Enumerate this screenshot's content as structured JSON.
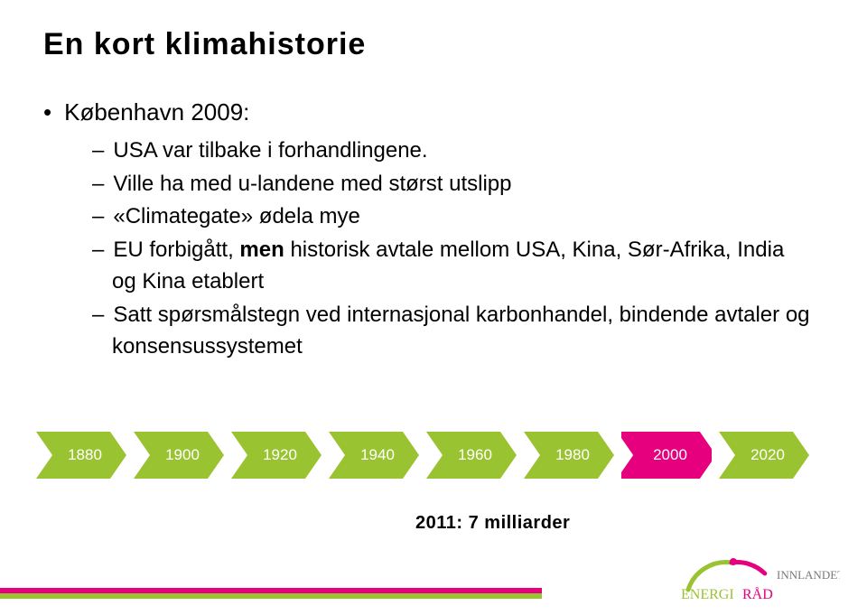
{
  "title": "En kort klimahistorie",
  "bullet_main": "København 2009:",
  "sub_bullets": [
    {
      "pre": "USA var tilbake i forhandlingene.",
      "bold": "",
      "post": ""
    },
    {
      "pre": "Ville ha med u-landene med størst utslipp",
      "bold": "",
      "post": ""
    },
    {
      "pre": "«Climategate» ødela mye",
      "bold": "",
      "post": ""
    },
    {
      "pre": "EU forbigått, ",
      "bold": "men",
      "post": " historisk avtale mellom USA, Kina, Sør-Afrika, India og Kina etablert"
    },
    {
      "pre": "Satt spørsmålstegn ved internasjonal karbonhandel, bindende avtaler og konsensussystemet",
      "bold": "",
      "post": ""
    }
  ],
  "timeline": {
    "items": [
      {
        "label": "1880",
        "fill": "#9ac331",
        "highlight": false
      },
      {
        "label": "1900",
        "fill": "#9ac331",
        "highlight": false
      },
      {
        "label": "1920",
        "fill": "#9ac331",
        "highlight": false
      },
      {
        "label": "1940",
        "fill": "#9ac331",
        "highlight": false
      },
      {
        "label": "1960",
        "fill": "#9ac331",
        "highlight": false
      },
      {
        "label": "1980",
        "fill": "#9ac331",
        "highlight": false
      },
      {
        "label": "2000",
        "fill": "#e6007e",
        "highlight": true
      },
      {
        "label": "2020",
        "fill": "#9ac331",
        "highlight": false
      }
    ],
    "chev_width": 100,
    "chev_height": 52,
    "notch": 18,
    "label_fontsize": 17,
    "label_color": "#ffffff"
  },
  "caption": "2011: 7 milliarder",
  "footer": {
    "pink": "#e6007e",
    "green": "#9ac331"
  },
  "logo": {
    "brand1": "ENERGI",
    "brand2": "RÅD",
    "sub": "INNLANDET",
    "green": "#9ac331",
    "pink": "#e6007e",
    "gray": "#7a7a7a"
  },
  "colors": {
    "text": "#000000",
    "bg": "#ffffff"
  }
}
